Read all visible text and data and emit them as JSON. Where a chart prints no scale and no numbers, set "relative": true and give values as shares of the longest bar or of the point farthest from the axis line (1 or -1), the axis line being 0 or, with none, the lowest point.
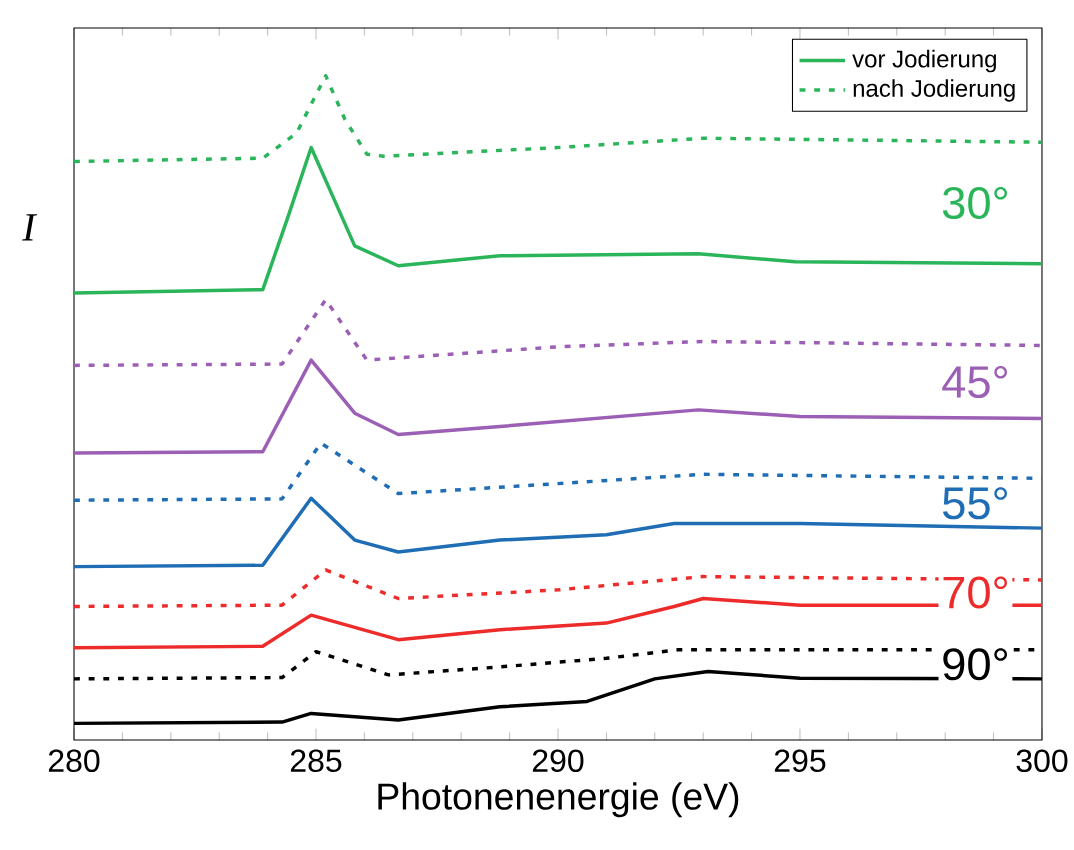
{
  "chart_data": {
    "type": "line",
    "relative": true,
    "xlabel": "Photonenenergie (eV)",
    "ylabel": "I",
    "xlim": [
      280,
      300
    ],
    "xticks": [
      280,
      285,
      290,
      295,
      300
    ],
    "legend": "top right",
    "grid": false,
    "marker": "none",
    "series": [
      {
        "name": "vor Jodierung",
        "color": "#2bb55a",
        "line_style": "solid",
        "x": [
          280,
          283.9,
          284.4,
          284.9,
          285.8,
          286.7,
          288.8,
          292.9,
          294.9,
          300
        ],
        "values": [
          0.673,
          0.678,
          0.783,
          0.892,
          0.744,
          0.714,
          0.729,
          0.732,
          0.72,
          0.717
        ]
      },
      {
        "name": "nach Jodierung",
        "color": "#2bb55a",
        "line_style": "dotted",
        "x": [
          280,
          283.9,
          284.6,
          285.2,
          285.6,
          286.05,
          286.4,
          290,
          293,
          300
        ],
        "values": [
          0.871,
          0.876,
          0.914,
          1.0,
          0.934,
          0.882,
          0.879,
          0.892,
          0.906,
          0.9
        ]
      },
      {
        "color": "#9b5fb5",
        "line_style": "dotted",
        "x": [
          280,
          284.3,
          285.2,
          286.05,
          290,
          293,
          300
        ],
        "values": [
          0.564,
          0.566,
          0.663,
          0.572,
          0.592,
          0.6,
          0.594
        ]
      },
      {
        "color": "#9b5fb5",
        "line_style": "solid",
        "x": [
          280,
          283.9,
          284.9,
          285.8,
          286.7,
          288.8,
          292.9,
          295,
          300
        ],
        "values": [
          0.432,
          0.434,
          0.572,
          0.492,
          0.46,
          0.472,
          0.497,
          0.487,
          0.484
        ]
      },
      {
        "color": "#1f6db5",
        "line_style": "dotted",
        "x": [
          280,
          284.3,
          285.1,
          286.7,
          290,
          293,
          300
        ],
        "values": [
          0.361,
          0.363,
          0.447,
          0.371,
          0.386,
          0.4,
          0.394
        ]
      },
      {
        "color": "#1f6db5",
        "line_style": "solid",
        "x": [
          280,
          283.9,
          284.9,
          285.8,
          286.7,
          288.8,
          291,
          292.4,
          295,
          300
        ],
        "values": [
          0.261,
          0.263,
          0.364,
          0.301,
          0.283,
          0.301,
          0.309,
          0.326,
          0.326,
          0.319
        ]
      },
      {
        "color": "#ee2b2b",
        "line_style": "dotted",
        "x": [
          280,
          284.3,
          285.2,
          286.7,
          290,
          293,
          300
        ],
        "values": [
          0.201,
          0.203,
          0.256,
          0.213,
          0.226,
          0.246,
          0.241
        ]
      },
      {
        "color": "#ee2b2b",
        "line_style": "solid",
        "x": [
          280,
          283.9,
          284.9,
          286.7,
          288.8,
          291,
          292.4,
          293,
          295,
          300
        ],
        "values": [
          0.139,
          0.141,
          0.188,
          0.151,
          0.166,
          0.176,
          0.201,
          0.213,
          0.203,
          0.203
        ]
      },
      {
        "color": "#000000",
        "line_style": "dotted",
        "x": [
          280,
          284.3,
          285.0,
          286.5,
          288.8,
          291,
          292.5,
          295,
          300
        ],
        "values": [
          0.092,
          0.094,
          0.133,
          0.098,
          0.11,
          0.123,
          0.136,
          0.136,
          0.136
        ]
      },
      {
        "color": "#000000",
        "line_style": "solid",
        "x": [
          280,
          284.3,
          284.9,
          286.7,
          288.8,
          290.6,
          292,
          293.1,
          295,
          300
        ],
        "values": [
          0.025,
          0.027,
          0.04,
          0.03,
          0.05,
          0.058,
          0.092,
          0.103,
          0.093,
          0.092
        ]
      }
    ],
    "annotations": [
      "30°",
      "45°",
      "55°",
      "70°",
      "90°"
    ]
  }
}
